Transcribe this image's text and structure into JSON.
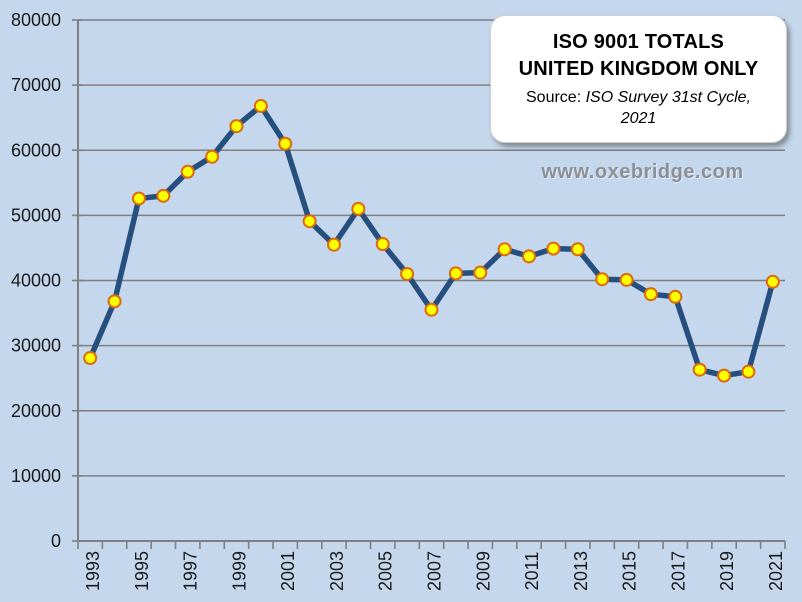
{
  "watermark": "www.oxebridge.com",
  "chart_data": {
    "type": "line",
    "title_lines": [
      "ISO 9001 TOTALS",
      "UNITED KINGDOM ONLY"
    ],
    "source_label": "Source: ",
    "source_ref": "ISO Survey 31st Cycle, 2021",
    "xlabel": "",
    "ylabel": "",
    "x": [
      1993,
      1994,
      1995,
      1996,
      1997,
      1998,
      1999,
      2000,
      2001,
      2002,
      2003,
      2004,
      2005,
      2006,
      2007,
      2008,
      2009,
      2010,
      2011,
      2012,
      2013,
      2014,
      2015,
      2016,
      2017,
      2018,
      2019,
      2020,
      2021
    ],
    "values": [
      28100,
      36800,
      52600,
      53000,
      56700,
      59000,
      63700,
      66800,
      61000,
      49100,
      45500,
      51000,
      45600,
      41000,
      35500,
      41100,
      41200,
      44800,
      43700,
      44900,
      44800,
      40200,
      40100,
      37900,
      37500,
      26300,
      25400,
      26000,
      39800
    ],
    "ylim": [
      0,
      80000
    ],
    "ytick_labels": [
      0,
      10000,
      20000,
      30000,
      40000,
      50000,
      60000,
      70000,
      80000
    ],
    "xtick_labels": [
      1993,
      1995,
      1997,
      1999,
      2001,
      2003,
      2005,
      2007,
      2009,
      2011,
      2013,
      2015,
      2017,
      2019,
      2021
    ],
    "grid": "horizontal",
    "legend": "none",
    "marker": "circle",
    "colors": {
      "background": "#c5d7ed",
      "line": "#264f7e",
      "marker_fill": "#ffff00",
      "marker_stroke": "#dd6b0d",
      "gridline": "#7f7f7f",
      "axis_text": "#1a1a1a",
      "watermark_text": "#8c9094",
      "title_box_bg": "#ffffff"
    }
  }
}
